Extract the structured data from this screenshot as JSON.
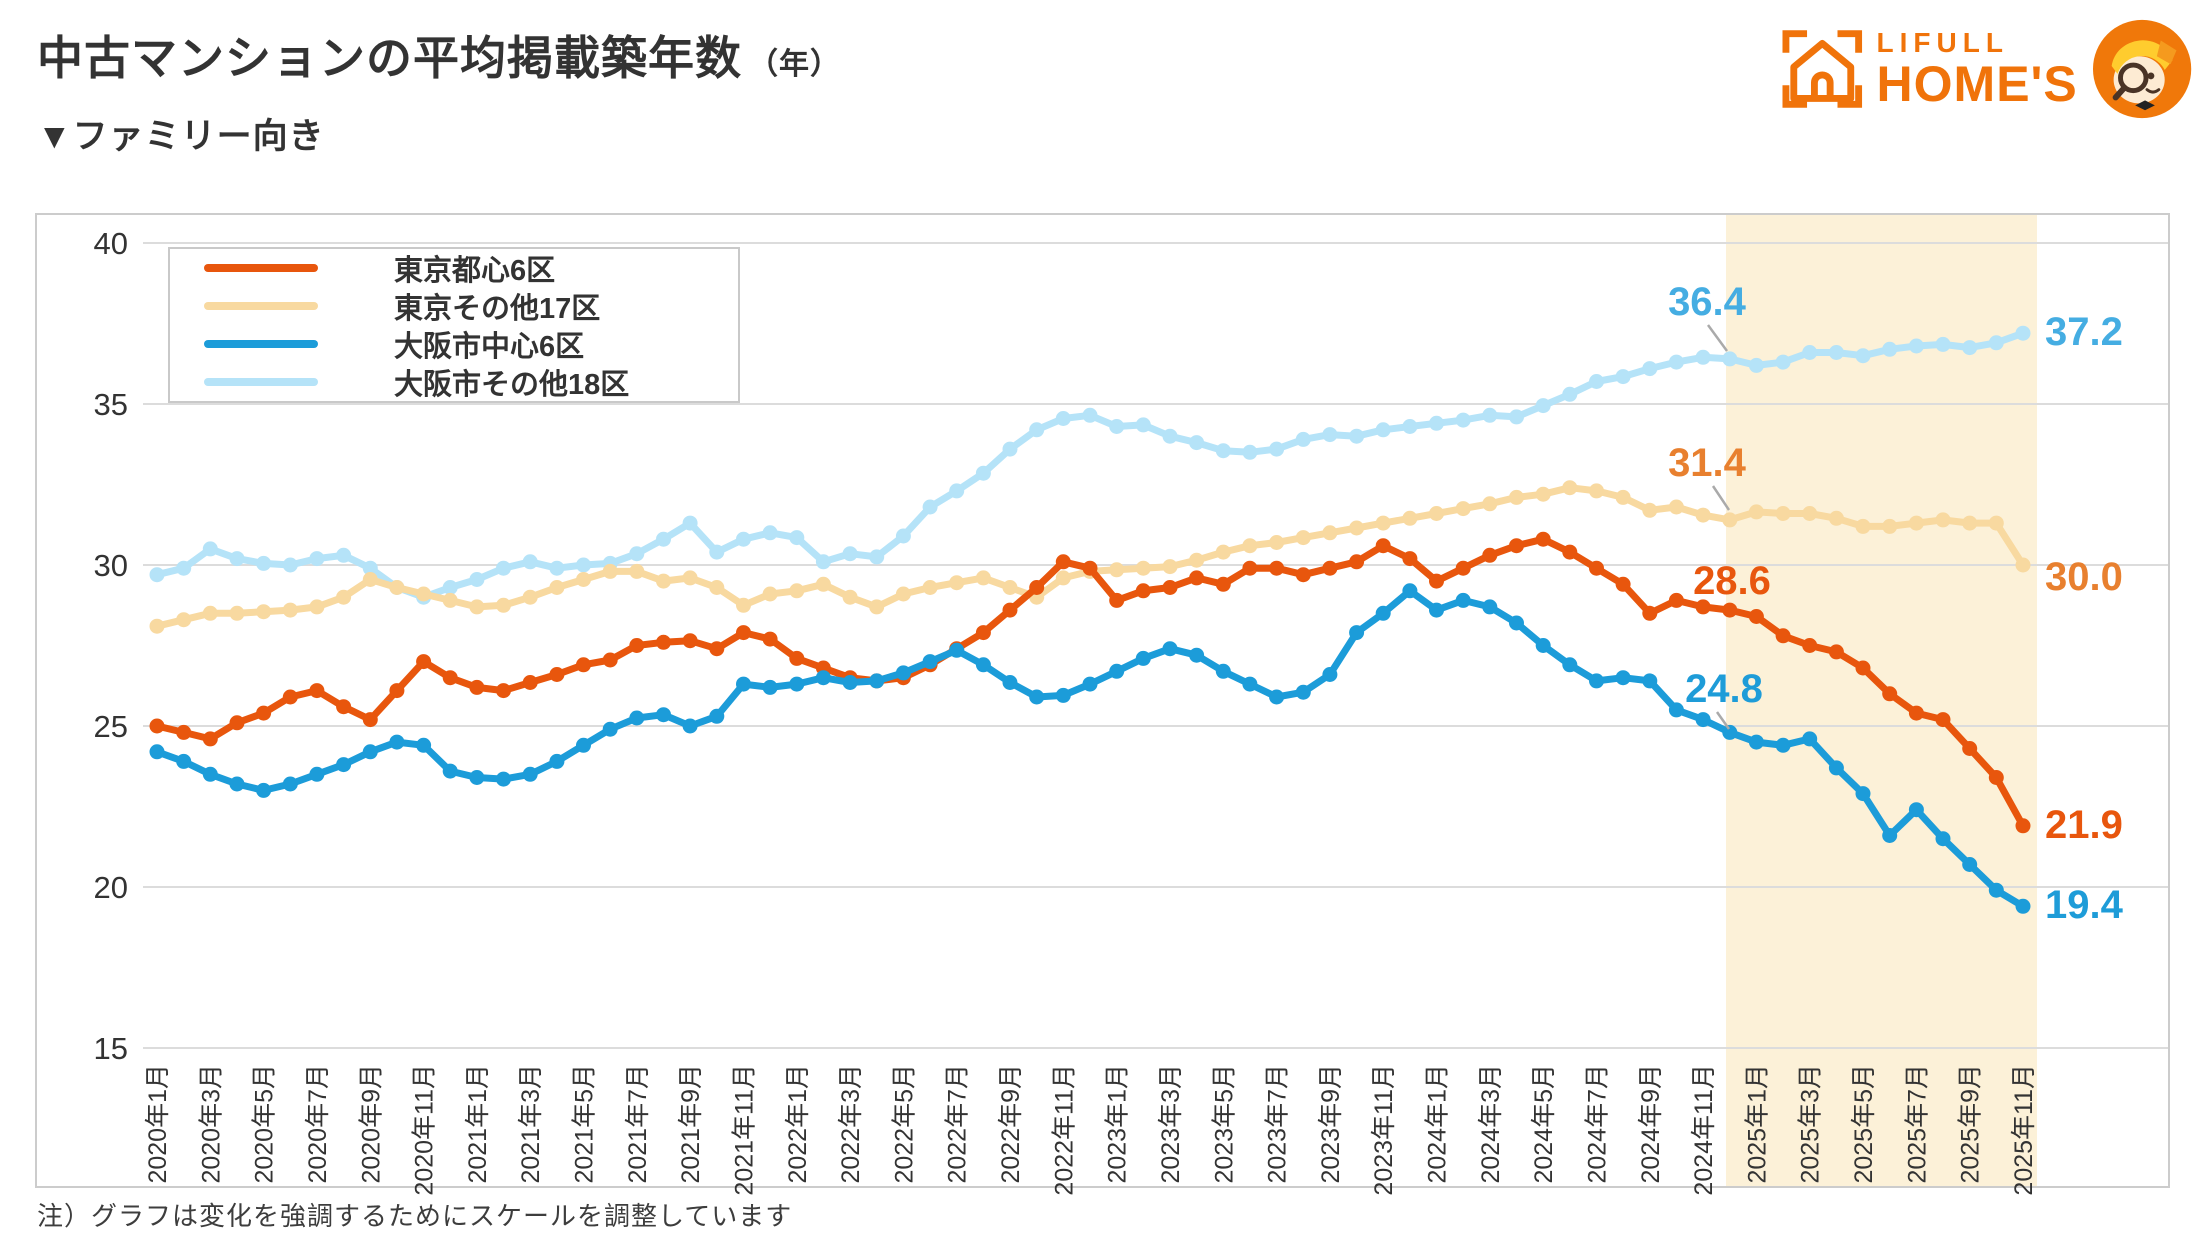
{
  "header": {
    "title": "中古マンションの平均掲載築年数",
    "title_unit": "（年）",
    "subtitle": "▼ファミリー向き",
    "logo": {
      "brand_top": "LIFULL",
      "brand_bottom": "HOME'S"
    }
  },
  "note": "注）グラフは変化を強調するためにスケールを調整しています",
  "chart_data": {
    "type": "line",
    "title": "中古マンションの平均掲載築年数（年）ファミリー向き",
    "ylim": [
      15,
      40
    ],
    "yticks": [
      15,
      20,
      25,
      30,
      35,
      40
    ],
    "grid": true,
    "x_months_start": "2020年1月",
    "x_months_end": "2025年11月",
    "x_tick_labels": [
      "2020年1月",
      "2020年3月",
      "2020年5月",
      "2020年7月",
      "2020年9月",
      "2020年11月",
      "2021年1月",
      "2021年3月",
      "2021年5月",
      "2021年7月",
      "2021年9月",
      "2021年11月",
      "2022年1月",
      "2022年3月",
      "2022年5月",
      "2022年7月",
      "2022年9月",
      "2022年11月",
      "2023年1月",
      "2023年3月",
      "2023年5月",
      "2023年7月",
      "2023年9月",
      "2023年11月",
      "2024年1月",
      "2024年3月",
      "2024年5月",
      "2024年7月",
      "2024年9月",
      "2024年11月",
      "2025年1月",
      "2025年3月",
      "2025年5月",
      "2025年7月",
      "2025年9月",
      "2025年11月"
    ],
    "highlight_band": {
      "from": "2025年1月",
      "to": "2025年11月",
      "color": "#FCF1D8"
    },
    "legend_position": "top-left-inside",
    "series": [
      {
        "name": "東京都心6区",
        "color": "#E8560D",
        "label_color": "#E8560D",
        "callout": {
          "month": "2024年12月",
          "value": 28.6
        },
        "end_label": {
          "month": "2025年11月",
          "value": 21.9
        },
        "values": [
          25.0,
          24.8,
          24.6,
          25.1,
          25.4,
          25.9,
          26.1,
          25.6,
          25.2,
          26.1,
          27.0,
          26.5,
          26.2,
          26.1,
          26.35,
          26.6,
          26.9,
          27.05,
          27.5,
          27.6,
          27.65,
          27.4,
          27.9,
          27.7,
          27.1,
          26.8,
          26.5,
          26.4,
          26.5,
          26.9,
          27.4,
          27.9,
          28.6,
          29.3,
          30.1,
          29.9,
          28.9,
          29.2,
          29.3,
          29.6,
          29.4,
          29.9,
          29.9,
          29.7,
          29.9,
          30.1,
          30.6,
          30.2,
          29.5,
          29.9,
          30.3,
          30.6,
          30.8,
          30.4,
          29.9,
          29.4,
          28.5,
          28.9,
          28.7,
          28.6,
          28.4,
          27.8,
          27.5,
          27.3,
          26.8,
          26.0,
          25.4,
          25.2,
          24.3,
          23.4,
          21.9
        ]
      },
      {
        "name": "東京その他17区",
        "color": "#F8D9A0",
        "label_color": "#E8802F",
        "callout": {
          "month": "2024年12月",
          "value": 31.4
        },
        "end_label": {
          "month": "2025年11月",
          "value": 30.0
        },
        "values": [
          28.1,
          28.3,
          28.5,
          28.5,
          28.55,
          28.6,
          28.7,
          29.0,
          29.55,
          29.3,
          29.1,
          28.9,
          28.7,
          28.75,
          29.0,
          29.3,
          29.55,
          29.8,
          29.8,
          29.5,
          29.6,
          29.3,
          28.75,
          29.1,
          29.2,
          29.4,
          29.0,
          28.7,
          29.1,
          29.3,
          29.45,
          29.6,
          29.3,
          29.0,
          29.6,
          29.8,
          29.85,
          29.9,
          29.95,
          30.15,
          30.4,
          30.6,
          30.7,
          30.85,
          31.0,
          31.15,
          31.3,
          31.45,
          31.6,
          31.75,
          31.9,
          32.1,
          32.2,
          32.4,
          32.3,
          32.1,
          31.7,
          31.8,
          31.55,
          31.4,
          31.65,
          31.6,
          31.6,
          31.45,
          31.2,
          31.2,
          31.3,
          31.4,
          31.3,
          31.3,
          30.0
        ]
      },
      {
        "name": "大阪市中心6区",
        "color": "#1C9CD9",
        "label_color": "#1E9CD8",
        "callout": {
          "month": "2024年12月",
          "value": 24.8
        },
        "end_label": {
          "month": "2025年11月",
          "value": 19.4
        },
        "values": [
          24.2,
          23.9,
          23.5,
          23.2,
          23.0,
          23.2,
          23.5,
          23.8,
          24.2,
          24.5,
          24.4,
          23.6,
          23.4,
          23.35,
          23.5,
          23.9,
          24.4,
          24.9,
          25.25,
          25.35,
          25.0,
          25.3,
          26.3,
          26.2,
          26.3,
          26.5,
          26.35,
          26.4,
          26.65,
          27.0,
          27.35,
          26.9,
          26.35,
          25.9,
          25.95,
          26.3,
          26.7,
          27.1,
          27.4,
          27.2,
          26.7,
          26.3,
          25.9,
          26.05,
          26.6,
          27.9,
          28.5,
          29.2,
          28.6,
          28.9,
          28.7,
          28.2,
          27.5,
          26.9,
          26.4,
          26.5,
          26.4,
          25.5,
          25.2,
          24.8,
          24.5,
          24.4,
          24.6,
          23.7,
          22.9,
          21.6,
          22.4,
          21.5,
          20.7,
          19.9,
          19.4
        ]
      },
      {
        "name": "大阪市その他18区",
        "color": "#B5E3F8",
        "label_color": "#45ADE2",
        "callout": {
          "month": "2024年12月",
          "value": 36.4
        },
        "end_label": {
          "month": "2025年11月",
          "value": 37.2
        },
        "values": [
          29.7,
          29.9,
          30.5,
          30.2,
          30.05,
          30.0,
          30.2,
          30.3,
          29.9,
          29.3,
          29.0,
          29.3,
          29.55,
          29.9,
          30.1,
          29.9,
          30.0,
          30.05,
          30.35,
          30.8,
          31.3,
          30.4,
          30.8,
          31.0,
          30.85,
          30.1,
          30.35,
          30.25,
          30.9,
          31.8,
          32.3,
          32.85,
          33.6,
          34.2,
          34.55,
          34.65,
          34.3,
          34.35,
          34.0,
          33.8,
          33.55,
          33.5,
          33.6,
          33.9,
          34.05,
          34.0,
          34.2,
          34.3,
          34.4,
          34.5,
          34.65,
          34.6,
          34.95,
          35.3,
          35.7,
          35.85,
          36.1,
          36.3,
          36.45,
          36.4,
          36.2,
          36.3,
          36.6,
          36.6,
          36.5,
          36.7,
          36.8,
          36.85,
          36.75,
          36.9,
          37.2
        ]
      }
    ]
  }
}
